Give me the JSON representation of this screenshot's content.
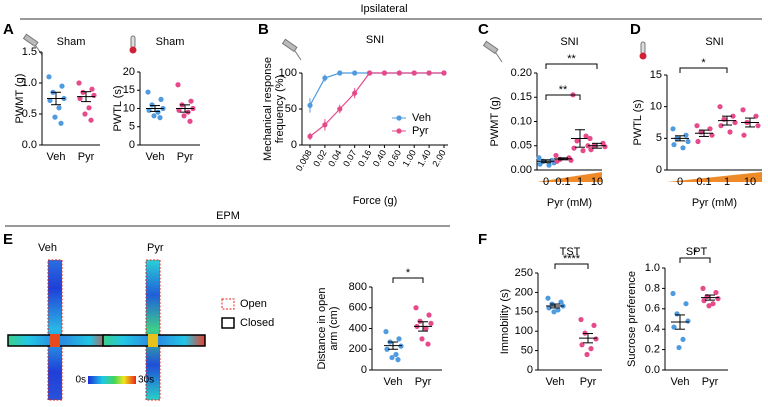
{
  "header": "Ipsilateral",
  "panel_letters": [
    "A",
    "B",
    "C",
    "D",
    "E",
    "F"
  ],
  "epm": {
    "title": "EPM",
    "groups": [
      "Veh",
      "Pyr"
    ],
    "legend": [
      "Open",
      "Closed"
    ],
    "colorbar": [
      "0s",
      "30s"
    ]
  },
  "chart_data": [
    {
      "type": "dot",
      "title": "Sham",
      "ylabel": "PWMT (g)",
      "categories": [
        "Veh",
        "Pyr"
      ],
      "colors": [
        "#4f9be0",
        "#e64a8a"
      ],
      "points": [
        [
          1.1,
          0.95,
          0.85,
          0.75,
          0.72,
          0.6,
          0.45,
          0.35
        ],
        [
          1.0,
          0.9,
          0.85,
          0.8,
          0.75,
          0.6,
          0.5,
          0.4
        ]
      ],
      "means": [
        0.75,
        0.78
      ],
      "errors": [
        0.1,
        0.08
      ],
      "ylim": [
        0,
        1.5
      ],
      "yticks": [
        {
          "value": 0,
          "label": "0.0"
        },
        {
          "value": 0.5,
          "label": "0.5"
        },
        {
          "value": 1,
          "label": "1.0"
        },
        {
          "value": 1.5,
          "label": "1.5"
        }
      ]
    },
    {
      "type": "dot",
      "title": "Sham",
      "ylabel": "PWTL (s)",
      "categories": [
        "Veh",
        "Pyr"
      ],
      "colors": [
        "#4f9be0",
        "#e64a8a"
      ],
      "points": [
        [
          14.5,
          12.5,
          11,
          10,
          9.5,
          9,
          8,
          7.5
        ],
        [
          16.5,
          12,
          11,
          10,
          9.5,
          9,
          8,
          6.5
        ]
      ],
      "means": [
        10,
        10
      ],
      "errors": [
        0.8,
        1
      ],
      "ylim": [
        0,
        20
      ],
      "yticks": [
        0,
        5,
        10,
        15,
        20
      ]
    },
    {
      "type": "line",
      "title": "SNI",
      "ylabel": [
        "Mechanical response",
        "frequency (%)"
      ],
      "xlabel": "Force (g)",
      "categories": [
        "0.008",
        "0.02",
        "0.04",
        "0.07",
        "0.16",
        "0.40",
        "0.60",
        "1.00",
        "1.40",
        "2.00"
      ],
      "series": [
        {
          "name": "Veh",
          "color": "#4f9be0",
          "values": [
            55,
            93,
            100,
            100,
            100,
            100,
            100,
            100,
            100,
            100
          ],
          "errors": [
            10,
            5,
            0,
            0,
            0,
            0,
            0,
            0,
            0,
            0
          ]
        },
        {
          "name": "Pyr",
          "color": "#e64a8a",
          "values": [
            12,
            28,
            50,
            72,
            100,
            100,
            100,
            100,
            100,
            100
          ],
          "errors": [
            5,
            8,
            6,
            7,
            0,
            0,
            0,
            0,
            0,
            0
          ]
        }
      ],
      "ylim": [
        0,
        100
      ],
      "yticks": [
        0,
        50,
        100
      ],
      "legend": "lower right"
    },
    {
      "type": "dot",
      "title": "SNI",
      "ylabel": "PWMT (g)",
      "xlabel": "Pyr (mM)",
      "categories": [
        "0",
        "0.1",
        "1",
        "10"
      ],
      "colors": [
        "#4f9be0",
        "#e64a8a",
        "#e64a8a",
        "#e64a8a"
      ],
      "points": [
        [
          0.025,
          0.02,
          0.018,
          0.015,
          0.012,
          0.01
        ],
        [
          0.03,
          0.025,
          0.022,
          0.02,
          0.018
        ],
        [
          0.155,
          0.07,
          0.06,
          0.05,
          0.045,
          0.04
        ],
        [
          0.065,
          0.055,
          0.05,
          0.048,
          0.042
        ]
      ],
      "means": [
        0.018,
        0.023,
        0.065,
        0.05
      ],
      "errors": [
        0.003,
        0.002,
        0.018,
        0.005
      ],
      "ylim": [
        0,
        0.2
      ],
      "yticks": [
        {
          "value": 0,
          "label": "0.00"
        },
        {
          "value": 0.05,
          "label": "0.05"
        },
        {
          "value": 0.1,
          "label": "0.10"
        },
        {
          "value": 0.15,
          "label": "0.15"
        },
        {
          "value": 0.2,
          "label": "0.20"
        }
      ],
      "significance": [
        {
          "between": [
            "0",
            "1"
          ],
          "label": "**"
        },
        {
          "between": [
            "0",
            "10"
          ],
          "label": "**"
        }
      ]
    },
    {
      "type": "dot",
      "title": "SNI",
      "ylabel": "PWTL (s)",
      "xlabel": "Pyr (mM)",
      "categories": [
        "0",
        "0.1",
        "1",
        "10"
      ],
      "colors": [
        "#4f9be0",
        "#e64a8a",
        "#e64a8a",
        "#e64a8a"
      ],
      "points": [
        [
          6.5,
          5.5,
          5,
          4.5,
          4,
          3.5
        ],
        [
          7,
          6.5,
          6,
          5.5,
          4.5
        ],
        [
          10,
          8.5,
          8,
          7.5,
          7,
          6
        ],
        [
          9.5,
          8.5,
          7.5,
          7,
          5.5
        ]
      ],
      "means": [
        5,
        5.8,
        7.8,
        7.5
      ],
      "errors": [
        0.4,
        0.5,
        0.7,
        0.7
      ],
      "ylim": [
        0,
        15
      ],
      "yticks": [
        0,
        5,
        10,
        15
      ],
      "significance": [
        {
          "between": [
            "0",
            "1"
          ],
          "label": "*"
        }
      ]
    },
    {
      "type": "dot",
      "ylabel": [
        "Distance in open",
        "arm (cm)"
      ],
      "categories": [
        "Veh",
        "Pyr"
      ],
      "colors": [
        "#4f9be0",
        "#e64a8a"
      ],
      "points": [
        [
          370,
          300,
          270,
          230,
          200,
          150,
          120,
          100
        ],
        [
          600,
          530,
          470,
          450,
          420,
          400,
          300,
          250
        ]
      ],
      "means": [
        235,
        420
      ],
      "errors": [
        35,
        45
      ],
      "ylim": [
        0,
        800
      ],
      "yticks": [
        0,
        200,
        400,
        600,
        800
      ],
      "significance": [
        {
          "between": [
            "Veh",
            "Pyr"
          ],
          "label": "*"
        }
      ]
    },
    {
      "type": "dot",
      "title": "TST",
      "ylabel": "Immobility (s)",
      "categories": [
        "Veh",
        "Pyr"
      ],
      "colors": [
        "#4f9be0",
        "#e64a8a"
      ],
      "points": [
        [
          185,
          175,
          170,
          165,
          160,
          155,
          150
        ],
        [
          130,
          115,
          95,
          80,
          65,
          55,
          40
        ]
      ],
      "means": [
        165,
        82
      ],
      "errors": [
        5,
        12
      ],
      "ylim": [
        0,
        250
      ],
      "yticks": [
        0,
        50,
        100,
        150,
        200,
        250
      ],
      "significance": [
        {
          "between": [
            "Veh",
            "Pyr"
          ],
          "label": "****"
        }
      ]
    },
    {
      "type": "dot",
      "title": "SPT",
      "ylabel": "Sucrose preference",
      "categories": [
        "Veh",
        "Pyr"
      ],
      "colors": [
        "#4f9be0",
        "#e64a8a"
      ],
      "points": [
        [
          0.75,
          0.65,
          0.55,
          0.48,
          0.42,
          0.3,
          0.22
        ],
        [
          0.8,
          0.76,
          0.72,
          0.7,
          0.68,
          0.65,
          0.63
        ]
      ],
      "means": [
        0.47,
        0.71
      ],
      "errors": [
        0.07,
        0.025
      ],
      "ylim": [
        0,
        1
      ],
      "yticks": [
        {
          "value": 0,
          "label": "0.0"
        },
        {
          "value": 0.2,
          "label": "0.2"
        },
        {
          "value": 0.4,
          "label": "0.4"
        },
        {
          "value": 0.6,
          "label": "0.6"
        },
        {
          "value": 0.8,
          "label": "0.8"
        },
        {
          "value": 1,
          "label": "1.0"
        }
      ],
      "significance": [
        {
          "between": [
            "Veh",
            "Pyr"
          ],
          "label": "*"
        }
      ]
    }
  ]
}
